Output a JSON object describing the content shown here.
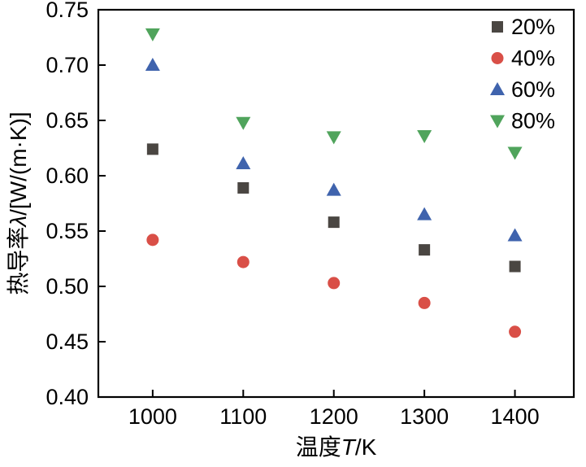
{
  "chart_data": {
    "type": "scatter",
    "x": [
      1000,
      1100,
      1200,
      1300,
      1400
    ],
    "series": [
      {
        "name": "20%",
        "marker": "square",
        "color": "#4a4642",
        "values": [
          0.624,
          0.589,
          0.558,
          0.533,
          0.518
        ]
      },
      {
        "name": "40%",
        "marker": "circle",
        "color": "#d94f47",
        "values": [
          0.542,
          0.522,
          0.503,
          0.485,
          0.459
        ]
      },
      {
        "name": "60%",
        "marker": "triangle-up",
        "color": "#3f63ad",
        "values": [
          0.7,
          0.611,
          0.587,
          0.565,
          0.546
        ]
      },
      {
        "name": "80%",
        "marker": "triangle-down",
        "color": "#50a45c",
        "values": [
          0.728,
          0.648,
          0.635,
          0.636,
          0.621
        ]
      }
    ],
    "title": "",
    "xlabel": {
      "prefix": "温度",
      "italic": "T",
      "suffix": "/K",
      "full": "温度T/K"
    },
    "ylabel": {
      "prefix": "热导率",
      "italic": "λ",
      "suffix": "/[W/(m·K)]",
      "full": "热导率λ/[W/(m·K)]"
    },
    "xlim": [
      940,
      1465
    ],
    "ylim": [
      0.4,
      0.75
    ],
    "x_ticks": [
      1000,
      1100,
      1200,
      1300,
      1400
    ],
    "y_ticks": [
      0.4,
      0.45,
      0.5,
      0.55,
      0.6,
      0.65,
      0.7,
      0.75
    ],
    "y_tick_decimals": 2,
    "legend_position": "top-right",
    "legend_labels": [
      "20%",
      "40%",
      "60%",
      "80%"
    ],
    "grid": false,
    "axis_color": "#000000",
    "background_color": "#ffffff"
  }
}
